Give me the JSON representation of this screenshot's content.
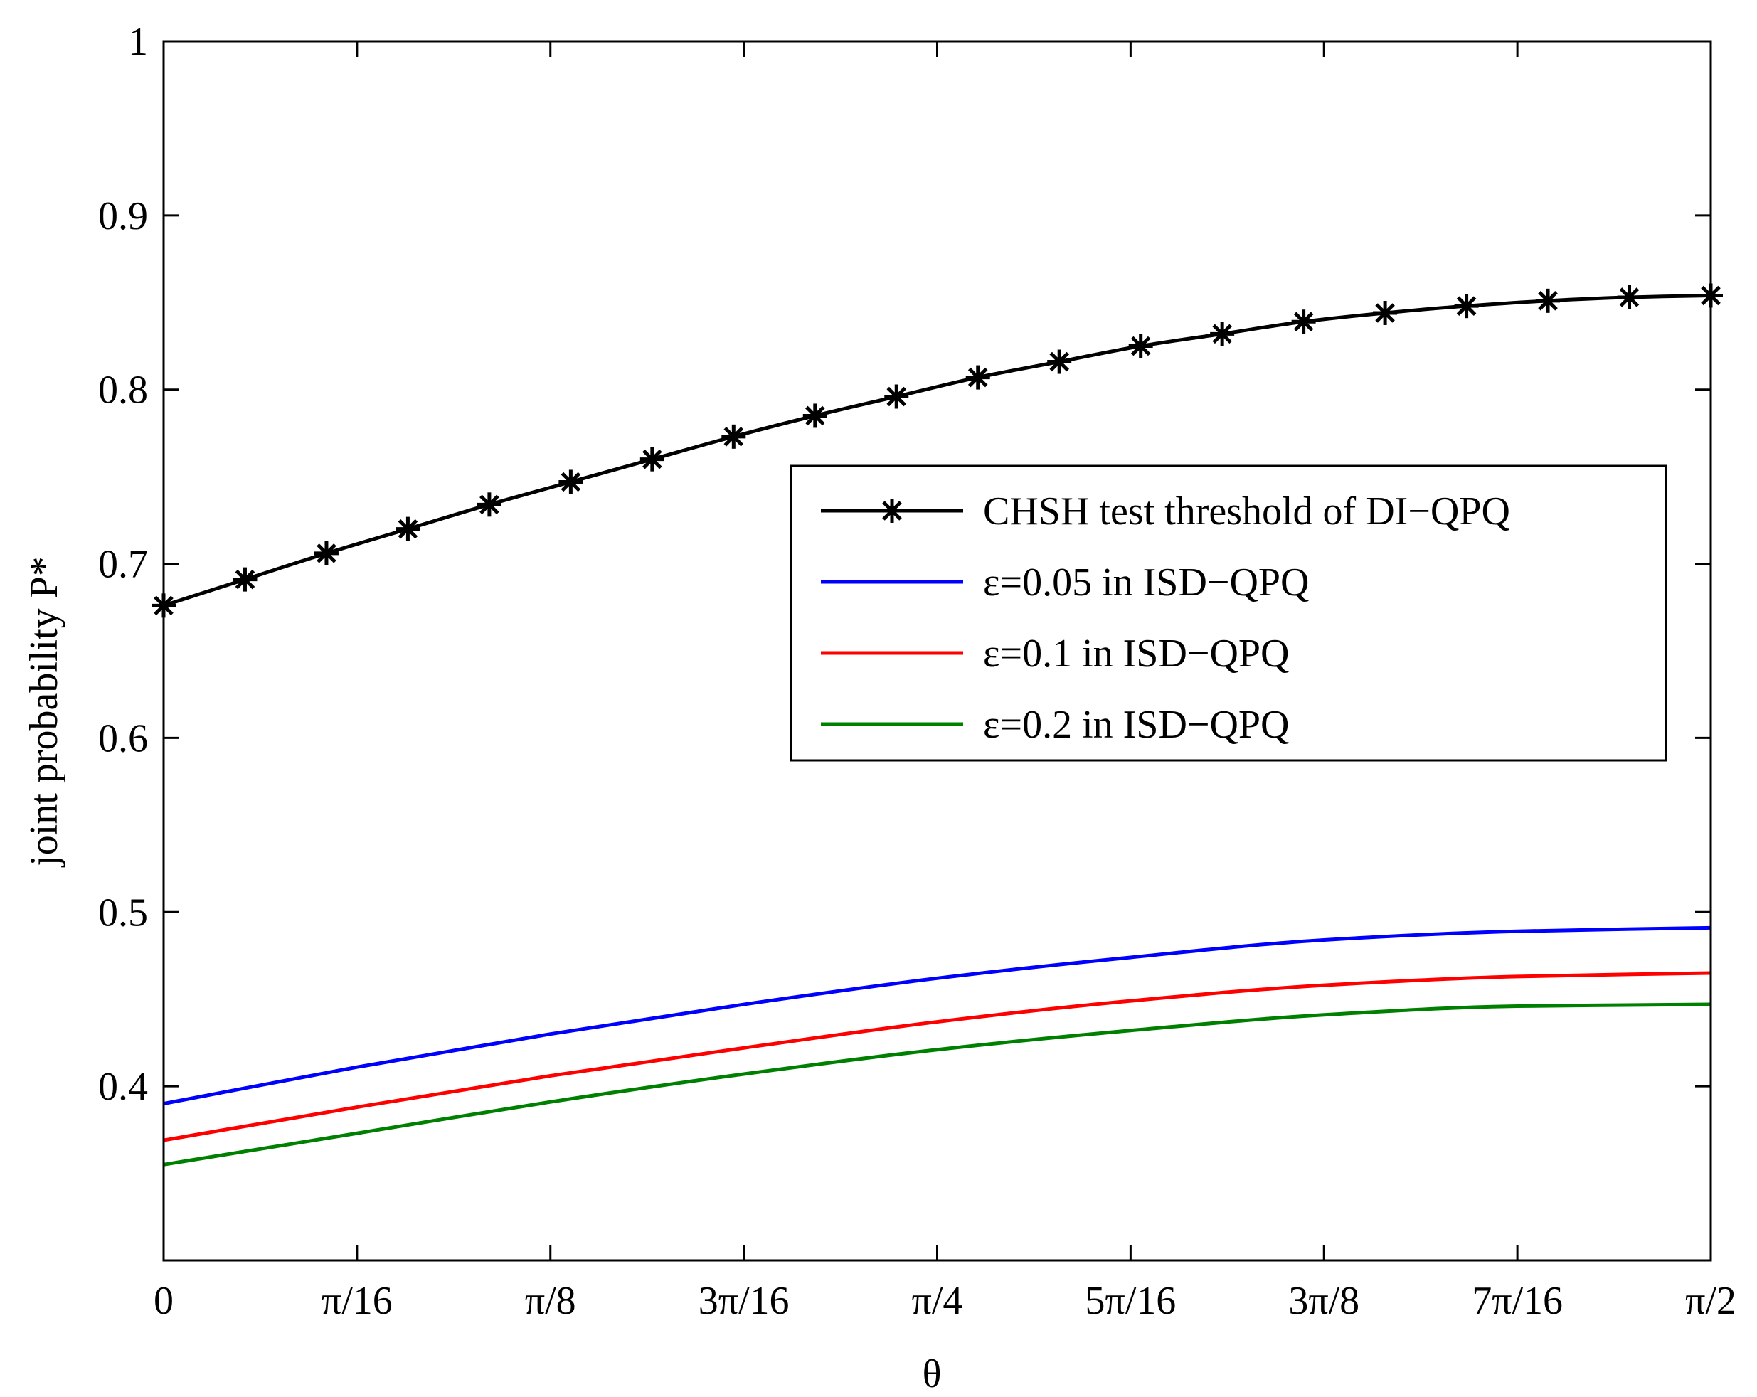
{
  "chart_data": {
    "type": "line",
    "title": "",
    "xlabel": "θ",
    "ylabel": "joint probability P*",
    "xlim": [
      0,
      1.5707963
    ],
    "ylim": [
      0.3,
      1.0
    ],
    "grid": false,
    "legend_position": "center-right",
    "x_ticks": [
      0,
      0.19635,
      0.3927,
      0.589049,
      0.785398,
      0.981748,
      1.178097,
      1.374447,
      1.570796
    ],
    "x_tick_labels": [
      "0",
      "π/16",
      "π/8",
      "3π/16",
      "π/4",
      "5π/16",
      "3π/8",
      "7π/16",
      "π/2"
    ],
    "y_ticks": [
      0.4,
      0.5,
      0.6,
      0.7,
      0.8,
      0.9,
      1.0
    ],
    "y_tick_labels": [
      "0.4",
      "0.5",
      "0.6",
      "0.7",
      "0.8",
      "0.9",
      "1"
    ],
    "series": [
      {
        "name": "CHSH test threshold of DI−QPQ",
        "color": "#000000",
        "marker": "asterisk",
        "x": [
          0,
          0.08267,
          0.16535,
          0.24802,
          0.33069,
          0.41337,
          0.49604,
          0.57871,
          0.66139,
          0.74406,
          0.82673,
          0.90941,
          0.99208,
          1.07475,
          1.15742,
          1.2401,
          1.32277,
          1.40544,
          1.48812,
          1.5708
        ],
        "y": [
          0.676,
          0.691,
          0.706,
          0.72,
          0.734,
          0.747,
          0.76,
          0.773,
          0.785,
          0.796,
          0.807,
          0.816,
          0.825,
          0.832,
          0.839,
          0.844,
          0.848,
          0.851,
          0.853,
          0.854
        ]
      },
      {
        "name": "ε=0.05 in ISD−QPQ",
        "color": "#0000ff",
        "x": [
          0,
          0.19635,
          0.3927,
          0.589049,
          0.785398,
          0.981748,
          1.178097,
          1.374447,
          1.570796
        ],
        "y": [
          0.39,
          0.411,
          0.43,
          0.447,
          0.462,
          0.474,
          0.484,
          0.489,
          0.491
        ]
      },
      {
        "name": "ε=0.1 in ISD−QPQ",
        "color": "#ff0000",
        "x": [
          0,
          0.19635,
          0.3927,
          0.589049,
          0.785398,
          0.981748,
          1.178097,
          1.374447,
          1.570796
        ],
        "y": [
          0.369,
          0.388,
          0.406,
          0.422,
          0.437,
          0.449,
          0.458,
          0.463,
          0.465
        ]
      },
      {
        "name": "ε=0.2 in ISD−QPQ",
        "color": "#008000",
        "x": [
          0,
          0.19635,
          0.3927,
          0.589049,
          0.785398,
          0.981748,
          1.178097,
          1.374447,
          1.570796
        ],
        "y": [
          0.355,
          0.373,
          0.391,
          0.407,
          0.421,
          0.432,
          0.441,
          0.446,
          0.447
        ]
      }
    ]
  }
}
